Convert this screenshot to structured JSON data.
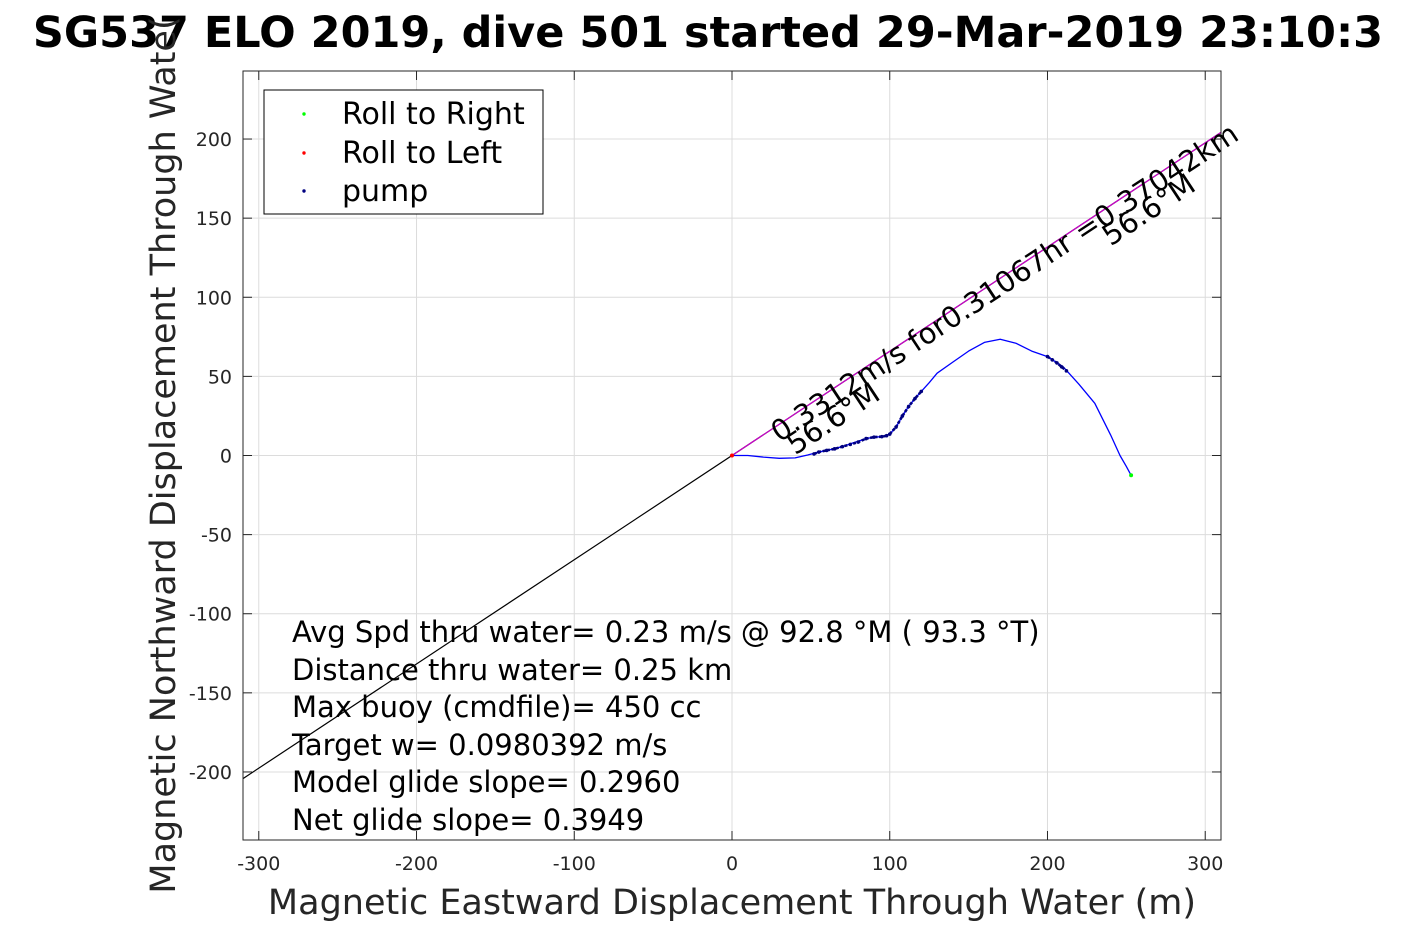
{
  "chart_data": {
    "type": "line",
    "title": "SG537 ELO 2019, dive 501 started 29-Mar-2019 23:10:3",
    "xlabel": "Magnetic Eastward Displacement Through Water (m)",
    "ylabel": "Magnetic Northward Displacement Through Wate(",
    "xlim": [
      -310,
      310
    ],
    "ylim": [
      -243,
      243
    ],
    "xticks": [
      -300,
      -200,
      -100,
      0,
      100,
      200,
      300
    ],
    "yticks": [
      -200,
      -150,
      -100,
      -50,
      0,
      50,
      100,
      150,
      200
    ],
    "grid": true,
    "legend": {
      "placement": "top-left",
      "entries": [
        {
          "label": "Roll to Right",
          "color": "#00ff00"
        },
        {
          "label": "Roll to Left",
          "color": "#ff0000"
        },
        {
          "label": "pump",
          "color": "#000080"
        }
      ]
    },
    "track": {
      "color": "#0000ff",
      "x": [
        0,
        10,
        20,
        30,
        40,
        48,
        55,
        62,
        70,
        78,
        85,
        90,
        95,
        100,
        104,
        108,
        112,
        116,
        120,
        125,
        130,
        140,
        150,
        160,
        170,
        180,
        190,
        200,
        210,
        220,
        230,
        240,
        246,
        250,
        253
      ],
      "y": [
        0,
        0,
        -1,
        -1.8,
        -1.5,
        0.3,
        2.2,
        3.6,
        5.6,
        8.4,
        10.7,
        11.6,
        11.9,
        13.5,
        18,
        25,
        31,
        36,
        40.5,
        46,
        52,
        59,
        66,
        71.5,
        73.5,
        71,
        66,
        62.5,
        56,
        45,
        33,
        13,
        0,
        -7,
        -12.5
      ]
    },
    "pump_segments": [
      {
        "x": [
          52,
          55,
          60,
          65,
          70,
          75,
          80,
          85,
          90,
          95,
          98
        ],
        "y": [
          1,
          2.2,
          3.2,
          4.2,
          5.6,
          7,
          8.5,
          10.7,
          11.6,
          11.9,
          12.5
        ]
      },
      {
        "x": [
          100,
          104,
          108,
          112,
          116,
          120
        ],
        "y": [
          13.5,
          18,
          25,
          31,
          36,
          40.5
        ]
      },
      {
        "x": [
          200,
          203,
          206,
          209,
          212
        ],
        "y": [
          62.5,
          60.5,
          58.5,
          56,
          53.5
        ]
      }
    ],
    "roll_right_points": {
      "x": [
        253
      ],
      "y": [
        -12.5
      ]
    },
    "roll_left_points": {
      "x": [
        0
      ],
      "y": [
        0
      ]
    },
    "heading_line": {
      "color": "#000000",
      "x": [
        -310,
        310
      ],
      "y": [
        -204.2,
        204.2
      ]
    },
    "course_line": {
      "color": "#cc00cc",
      "x": [
        0,
        310
      ],
      "y": [
        0,
        204.2
      ]
    },
    "annotations": [
      {
        "text": "0.3312m/s for0.31067hr =0.37042km",
        "x": 30,
        "y": 8,
        "rotate": -33.4
      },
      {
        "text": "56.6°M",
        "x": 40,
        "y": 0,
        "rotate": -33.4
      },
      {
        "text": "56.6°M",
        "x": 240,
        "y": 132,
        "rotate": -33.4
      }
    ],
    "stats": [
      "Avg Spd thru water=  0.23 m/s @  92.8 °M ( 93.3 °T)",
      "Distance thru water=  0.25 km",
      "Max buoy (cmdfile)= 450 cc",
      "Target w= 0.0980392 m/s",
      "Model glide slope= 0.2960",
      "Net glide slope= 0.3949"
    ]
  }
}
